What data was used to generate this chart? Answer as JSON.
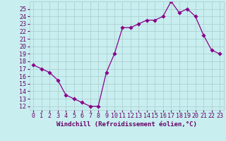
{
  "x": [
    0,
    1,
    2,
    3,
    4,
    5,
    6,
    7,
    8,
    9,
    10,
    11,
    12,
    13,
    14,
    15,
    16,
    17,
    18,
    19,
    20,
    21,
    22,
    23
  ],
  "y": [
    17.5,
    17.0,
    16.5,
    15.5,
    13.5,
    13.0,
    12.5,
    12.0,
    12.0,
    16.5,
    19.0,
    22.5,
    22.5,
    23.0,
    23.5,
    23.5,
    24.0,
    26.0,
    24.5,
    25.0,
    24.0,
    21.5,
    19.5,
    19.0
  ],
  "xlim": [
    -0.5,
    23.5
  ],
  "ylim": [
    11.5,
    26.0
  ],
  "yticks": [
    12,
    13,
    14,
    15,
    16,
    17,
    18,
    19,
    20,
    21,
    22,
    23,
    24,
    25
  ],
  "xticks": [
    0,
    1,
    2,
    3,
    4,
    5,
    6,
    7,
    8,
    9,
    10,
    11,
    12,
    13,
    14,
    15,
    16,
    17,
    18,
    19,
    20,
    21,
    22,
    23
  ],
  "line_color": "#880088",
  "marker": "D",
  "marker_size": 2.8,
  "bg_color": "#c8eef0",
  "grid_color": "#aacccc",
  "xlabel": "Windchill (Refroidissement éolien,°C)",
  "xlabel_color": "#660066",
  "tick_color": "#660066",
  "label_fontsize": 6.5,
  "tick_fontsize": 6.0
}
